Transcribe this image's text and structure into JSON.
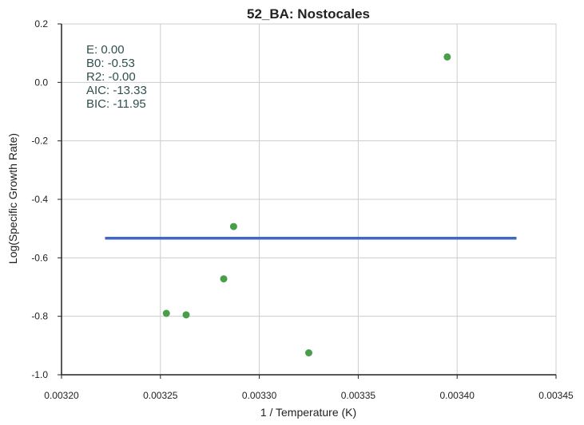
{
  "chart_data": {
    "type": "scatter",
    "title": "52_BA: Nostocales",
    "xlabel": "1 / Temperature (K)",
    "ylabel": "Log(Specific Growth Rate)",
    "xlim": [
      0.0032,
      0.00345
    ],
    "ylim": [
      -1.0,
      0.2
    ],
    "x_ticks": [
      "0.00320",
      "0.00325",
      "0.00330",
      "0.00335",
      "0.00340",
      "0.00345"
    ],
    "y_ticks": [
      "0.2",
      "0.0",
      "-0.2",
      "-0.4",
      "-0.6",
      "-0.8",
      "-1.0"
    ],
    "x_tick_values": [
      0.0032,
      0.00325,
      0.0033,
      0.00335,
      0.0034,
      0.00345
    ],
    "y_tick_values": [
      0.2,
      0.0,
      -0.2,
      -0.4,
      -0.6,
      -0.8,
      -1.0
    ],
    "grid": true,
    "points": [
      {
        "x": 0.003253,
        "y": -0.79
      },
      {
        "x": 0.003263,
        "y": -0.795
      },
      {
        "x": 0.003282,
        "y": -0.672
      },
      {
        "x": 0.003287,
        "y": -0.493
      },
      {
        "x": 0.003325,
        "y": -0.925
      },
      {
        "x": 0.003395,
        "y": 0.087
      }
    ],
    "fit_line": {
      "x": [
        0.003222,
        0.00343
      ],
      "y": [
        -0.533,
        -0.533
      ]
    },
    "stats_lines": [
      "E:  0.00",
      "B0:  -0.53",
      "R2:  -0.00",
      "AIC: -13.33",
      "BIC: -11.95"
    ],
    "colors": {
      "points": "#4a9e4a",
      "fit_line": "#3f67c8",
      "grid": "#cccccc",
      "axis": "#222222",
      "stats_text": "#2f4f4f"
    }
  }
}
